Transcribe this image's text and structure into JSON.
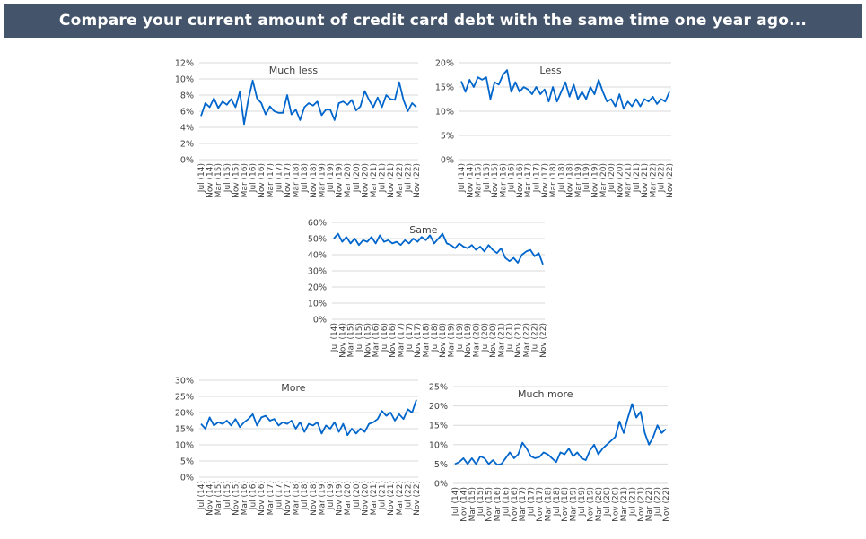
{
  "header": {
    "title": "Compare your current amount of credit card debt with the same time one year ago..."
  },
  "chart_data": [
    {
      "type": "line",
      "title": "Much less",
      "ylim": [
        0,
        12
      ],
      "yticks": [
        "0%",
        "2%",
        "4%",
        "6%",
        "8%",
        "10%",
        "12%"
      ],
      "ystep": 2,
      "color": "#0066cc",
      "values": [
        5.4,
        7.0,
        6.5,
        7.6,
        6.4,
        7.2,
        6.8,
        7.5,
        6.5,
        8.4,
        4.4,
        7.5,
        9.8,
        7.6,
        7.0,
        5.6,
        6.6,
        6.0,
        5.8,
        5.8,
        8.0,
        5.6,
        6.2,
        4.9,
        6.5,
        7.0,
        6.7,
        7.2,
        5.5,
        6.2,
        6.2,
        4.9,
        7.0,
        7.2,
        6.8,
        7.4,
        6.1,
        6.6,
        8.5,
        7.4,
        6.5,
        7.7,
        6.5,
        8.0,
        7.5,
        7.4,
        9.6,
        7.4,
        6.0,
        7.0,
        6.5
      ]
    },
    {
      "type": "line",
      "title": "Less",
      "ylim": [
        0,
        20
      ],
      "yticks": [
        "0%",
        "5%",
        "10%",
        "15%",
        "20%"
      ],
      "ystep": 5,
      "color": "#0066cc",
      "values": [
        16.2,
        14,
        16.5,
        15,
        17,
        16.5,
        17,
        12.5,
        16,
        15.5,
        17.5,
        18.5,
        14,
        16,
        14,
        15,
        14.5,
        13.5,
        15,
        13.5,
        14.5,
        12,
        15,
        12,
        14,
        16,
        13,
        15.5,
        12.5,
        14,
        12.5,
        15,
        13.5,
        16.5,
        14,
        12,
        12.5,
        11,
        13.5,
        10.5,
        12,
        11,
        12.5,
        11,
        12.5,
        12,
        13,
        11.5,
        12.5,
        12,
        14
      ]
    },
    {
      "type": "line",
      "title": "Same",
      "ylim": [
        0,
        60
      ],
      "yticks": [
        "0%",
        "10%",
        "20%",
        "30%",
        "40%",
        "50%",
        "60%"
      ],
      "ystep": 10,
      "color": "#0066cc",
      "values": [
        50,
        53,
        48,
        51,
        47,
        50,
        46,
        49,
        48,
        51,
        47,
        52,
        48,
        49,
        47,
        48,
        46,
        49,
        47,
        50,
        48,
        51,
        49,
        52,
        47,
        50,
        53,
        47,
        46,
        44,
        47,
        45,
        44,
        46,
        43,
        45,
        42,
        46,
        43,
        41,
        44,
        38,
        36,
        38,
        35,
        40,
        42,
        43,
        39,
        41,
        34
      ]
    },
    {
      "type": "line",
      "title": "More",
      "ylim": [
        0,
        30
      ],
      "yticks": [
        "0%",
        "5%",
        "10%",
        "15%",
        "20%",
        "25%",
        "30%"
      ],
      "ystep": 5,
      "color": "#0066cc",
      "values": [
        16.5,
        15,
        18.5,
        16,
        17,
        16.5,
        17.5,
        16,
        18,
        15.5,
        17,
        18,
        19.5,
        16,
        18.5,
        19,
        17.5,
        18,
        16,
        17,
        16.5,
        17.5,
        15,
        17,
        14,
        16.5,
        16,
        17,
        13.5,
        16,
        15,
        17,
        14,
        16.5,
        13,
        15,
        13.5,
        15,
        14,
        16.5,
        17,
        18,
        20.5,
        19,
        20,
        17.5,
        19.5,
        18,
        21,
        20,
        24
      ]
    },
    {
      "type": "line",
      "title": "Much more",
      "ylim": [
        0,
        25
      ],
      "yticks": [
        "0%",
        "5%",
        "10%",
        "15%",
        "20%",
        "25%"
      ],
      "ystep": 5,
      "color": "#0066cc",
      "values": [
        5,
        5.5,
        6.5,
        5,
        6.5,
        5,
        7,
        6.5,
        5,
        6,
        4.8,
        5,
        6.5,
        8,
        6.5,
        7.5,
        10.5,
        9,
        7,
        6.5,
        6.8,
        8,
        7.5,
        6.5,
        5.5,
        8,
        7.5,
        9,
        7,
        8,
        6.5,
        6,
        8.5,
        10,
        7.5,
        9,
        10,
        11,
        12,
        16,
        13,
        17,
        20.5,
        17,
        18.5,
        13,
        10,
        12,
        15,
        13,
        14
      ]
    }
  ],
  "x_labels": [
    "Jul (14)",
    "Nov (14)",
    "Mar (15)",
    "Jul (15)",
    "Nov (15)",
    "Mar (16)",
    "Jul (16)",
    "Nov (16)",
    "Mar (17)",
    "Jul (17)",
    "Nov (17)",
    "Mar (18)",
    "Jul (18)",
    "Nov (18)",
    "Mar (19)",
    "Jul (19)",
    "Nov (19)",
    "Mar (20)",
    "Jul (20)",
    "Nov (20)",
    "Mar (21)",
    "Jul (21)",
    "Nov (21)",
    "Mar (22)",
    "Jul (22)",
    "Nov (22)"
  ]
}
